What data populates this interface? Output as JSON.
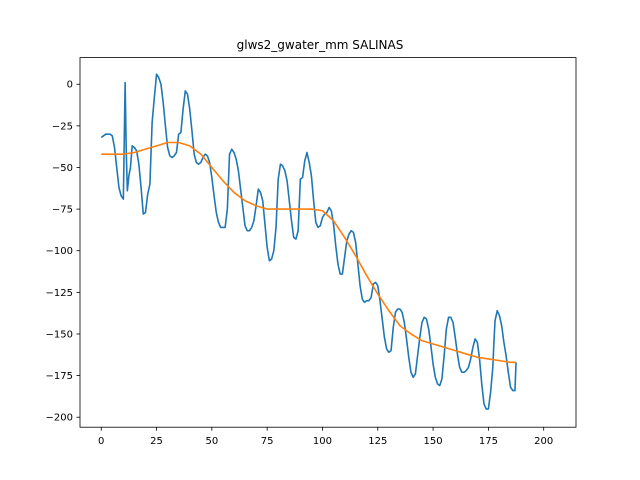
{
  "chart_data": {
    "type": "line",
    "title": "glws2_gwater_mm SALINAS",
    "xlabel": "",
    "ylabel": "",
    "xlim": [
      -9.6,
      214.6
    ],
    "ylim": [
      -206,
      16
    ],
    "xticks": [
      0,
      25,
      50,
      75,
      100,
      125,
      150,
      175,
      200
    ],
    "yticks": [
      0,
      -25,
      -50,
      -75,
      -100,
      -125,
      -150,
      -175,
      -200
    ],
    "grid": false,
    "colors": {
      "series1": "#1f77b4",
      "series2": "#ff7f0e"
    },
    "series": [
      {
        "points": [
          [
            0,
            -32
          ],
          [
            2,
            -30
          ],
          [
            4,
            -30
          ],
          [
            5,
            -31
          ],
          [
            6,
            -38
          ],
          [
            7,
            -50
          ],
          [
            8,
            -62
          ],
          [
            9,
            -67
          ],
          [
            10,
            -69
          ],
          [
            10.8,
            1
          ],
          [
            11.3,
            -40
          ],
          [
            11.8,
            -64
          ],
          [
            12.5,
            -55
          ],
          [
            13.2,
            -50
          ],
          [
            14,
            -37
          ],
          [
            15,
            -38
          ],
          [
            16,
            -40
          ],
          [
            17,
            -48
          ],
          [
            18,
            -62
          ],
          [
            19,
            -78
          ],
          [
            20,
            -77
          ],
          [
            21,
            -66
          ],
          [
            22,
            -60
          ],
          [
            23,
            -23
          ],
          [
            24,
            -8
          ],
          [
            25,
            6
          ],
          [
            26,
            4
          ],
          [
            27,
            0
          ],
          [
            28,
            -11
          ],
          [
            29,
            -25
          ],
          [
            30,
            -38
          ],
          [
            31,
            -43
          ],
          [
            32,
            -44
          ],
          [
            33,
            -43
          ],
          [
            34,
            -41
          ],
          [
            35,
            -30
          ],
          [
            36,
            -29
          ],
          [
            37,
            -15
          ],
          [
            38,
            -4
          ],
          [
            39,
            -6
          ],
          [
            40,
            -15
          ],
          [
            41,
            -28
          ],
          [
            42,
            -42
          ],
          [
            43,
            -47
          ],
          [
            44,
            -48
          ],
          [
            45,
            -47
          ],
          [
            46,
            -44
          ],
          [
            47,
            -42
          ],
          [
            48,
            -43
          ],
          [
            49,
            -47
          ],
          [
            50,
            -56
          ],
          [
            51,
            -67
          ],
          [
            52,
            -77
          ],
          [
            53,
            -83
          ],
          [
            54,
            -86
          ],
          [
            55,
            -86
          ],
          [
            56,
            -86
          ],
          [
            57,
            -75
          ],
          [
            58,
            -42
          ],
          [
            59,
            -39
          ],
          [
            60,
            -41
          ],
          [
            61,
            -45
          ],
          [
            62,
            -52
          ],
          [
            63,
            -63
          ],
          [
            64,
            -74
          ],
          [
            65,
            -85
          ],
          [
            66,
            -88
          ],
          [
            67,
            -88
          ],
          [
            68,
            -86
          ],
          [
            69,
            -82
          ],
          [
            70,
            -73
          ],
          [
            71,
            -63
          ],
          [
            72,
            -65
          ],
          [
            73,
            -70
          ],
          [
            74,
            -84
          ],
          [
            75,
            -98
          ],
          [
            76,
            -106
          ],
          [
            77,
            -105
          ],
          [
            78,
            -100
          ],
          [
            79,
            -86
          ],
          [
            80,
            -57
          ],
          [
            81,
            -48
          ],
          [
            82,
            -49
          ],
          [
            83,
            -52
          ],
          [
            84,
            -58
          ],
          [
            85,
            -70
          ],
          [
            86,
            -82
          ],
          [
            87,
            -92
          ],
          [
            88,
            -93
          ],
          [
            89,
            -88
          ],
          [
            90,
            -57
          ],
          [
            91,
            -56
          ],
          [
            92,
            -46
          ],
          [
            93,
            -41
          ],
          [
            94,
            -47
          ],
          [
            95,
            -55
          ],
          [
            96,
            -70
          ],
          [
            97,
            -83
          ],
          [
            98,
            -86
          ],
          [
            99,
            -85
          ],
          [
            100,
            -80
          ],
          [
            101,
            -78
          ],
          [
            102,
            -77
          ],
          [
            103,
            -74
          ],
          [
            104,
            -76
          ],
          [
            105,
            -84
          ],
          [
            106,
            -97
          ],
          [
            107,
            -108
          ],
          [
            108,
            -114
          ],
          [
            109,
            -114
          ],
          [
            110,
            -104
          ],
          [
            111,
            -94
          ],
          [
            112,
            -90
          ],
          [
            113,
            -88
          ],
          [
            114,
            -89
          ],
          [
            115,
            -95
          ],
          [
            116,
            -108
          ],
          [
            117,
            -121
          ],
          [
            118,
            -129
          ],
          [
            119,
            -131
          ],
          [
            120,
            -130
          ],
          [
            121,
            -130
          ],
          [
            122,
            -128
          ],
          [
            123,
            -120
          ],
          [
            124,
            -119
          ],
          [
            125,
            -121
          ],
          [
            126,
            -130
          ],
          [
            127,
            -141
          ],
          [
            128,
            -152
          ],
          [
            129,
            -159
          ],
          [
            130,
            -161
          ],
          [
            131,
            -160
          ],
          [
            132,
            -146
          ],
          [
            133,
            -137
          ],
          [
            134,
            -135
          ],
          [
            135,
            -135
          ],
          [
            136,
            -137
          ],
          [
            137,
            -143
          ],
          [
            138,
            -153
          ],
          [
            139,
            -164
          ],
          [
            140,
            -173
          ],
          [
            141,
            -176
          ],
          [
            142,
            -174
          ],
          [
            143,
            -163
          ],
          [
            144,
            -152
          ],
          [
            145,
            -143
          ],
          [
            146,
            -140
          ],
          [
            147,
            -141
          ],
          [
            148,
            -147
          ],
          [
            149,
            -157
          ],
          [
            150,
            -168
          ],
          [
            151,
            -176
          ],
          [
            152,
            -180
          ],
          [
            153,
            -181
          ],
          [
            154,
            -177
          ],
          [
            155,
            -163
          ],
          [
            156,
            -147
          ],
          [
            157,
            -140
          ],
          [
            158,
            -140
          ],
          [
            159,
            -143
          ],
          [
            160,
            -152
          ],
          [
            161,
            -162
          ],
          [
            162,
            -170
          ],
          [
            163,
            -173
          ],
          [
            164,
            -173
          ],
          [
            165,
            -172
          ],
          [
            166,
            -170
          ],
          [
            167,
            -165
          ],
          [
            168,
            -158
          ],
          [
            169,
            -153
          ],
          [
            170,
            -155
          ],
          [
            171,
            -165
          ],
          [
            172,
            -180
          ],
          [
            173,
            -192
          ],
          [
            174,
            -195
          ],
          [
            175,
            -195
          ],
          [
            176,
            -185
          ],
          [
            177,
            -170
          ],
          [
            177.5,
            -155
          ],
          [
            178,
            -142
          ],
          [
            179,
            -136
          ],
          [
            180,
            -139
          ],
          [
            181,
            -145
          ],
          [
            182,
            -155
          ],
          [
            183,
            -163
          ],
          [
            184,
            -173
          ],
          [
            185,
            -182
          ],
          [
            186,
            -184
          ],
          [
            187,
            -184
          ],
          [
            187.5,
            -167
          ]
        ]
      },
      {
        "points": [
          [
            0,
            -42
          ],
          [
            5,
            -42
          ],
          [
            10,
            -42
          ],
          [
            15,
            -41
          ],
          [
            20,
            -39
          ],
          [
            25,
            -37
          ],
          [
            30,
            -35
          ],
          [
            35,
            -35
          ],
          [
            40,
            -37
          ],
          [
            45,
            -42
          ],
          [
            50,
            -50
          ],
          [
            55,
            -58
          ],
          [
            60,
            -65
          ],
          [
            65,
            -70
          ],
          [
            70,
            -73
          ],
          [
            75,
            -75
          ],
          [
            80,
            -75
          ],
          [
            85,
            -75
          ],
          [
            90,
            -75
          ],
          [
            95,
            -75
          ],
          [
            100,
            -76
          ],
          [
            105,
            -82
          ],
          [
            110,
            -92
          ],
          [
            115,
            -103
          ],
          [
            120,
            -115
          ],
          [
            125,
            -126
          ],
          [
            130,
            -136
          ],
          [
            135,
            -145
          ],
          [
            140,
            -150
          ],
          [
            145,
            -154
          ],
          [
            150,
            -156
          ],
          [
            155,
            -158
          ],
          [
            160,
            -160
          ],
          [
            165,
            -162
          ],
          [
            170,
            -164
          ],
          [
            175,
            -165
          ],
          [
            180,
            -166
          ],
          [
            185,
            -167
          ],
          [
            187.5,
            -167
          ]
        ]
      }
    ]
  }
}
